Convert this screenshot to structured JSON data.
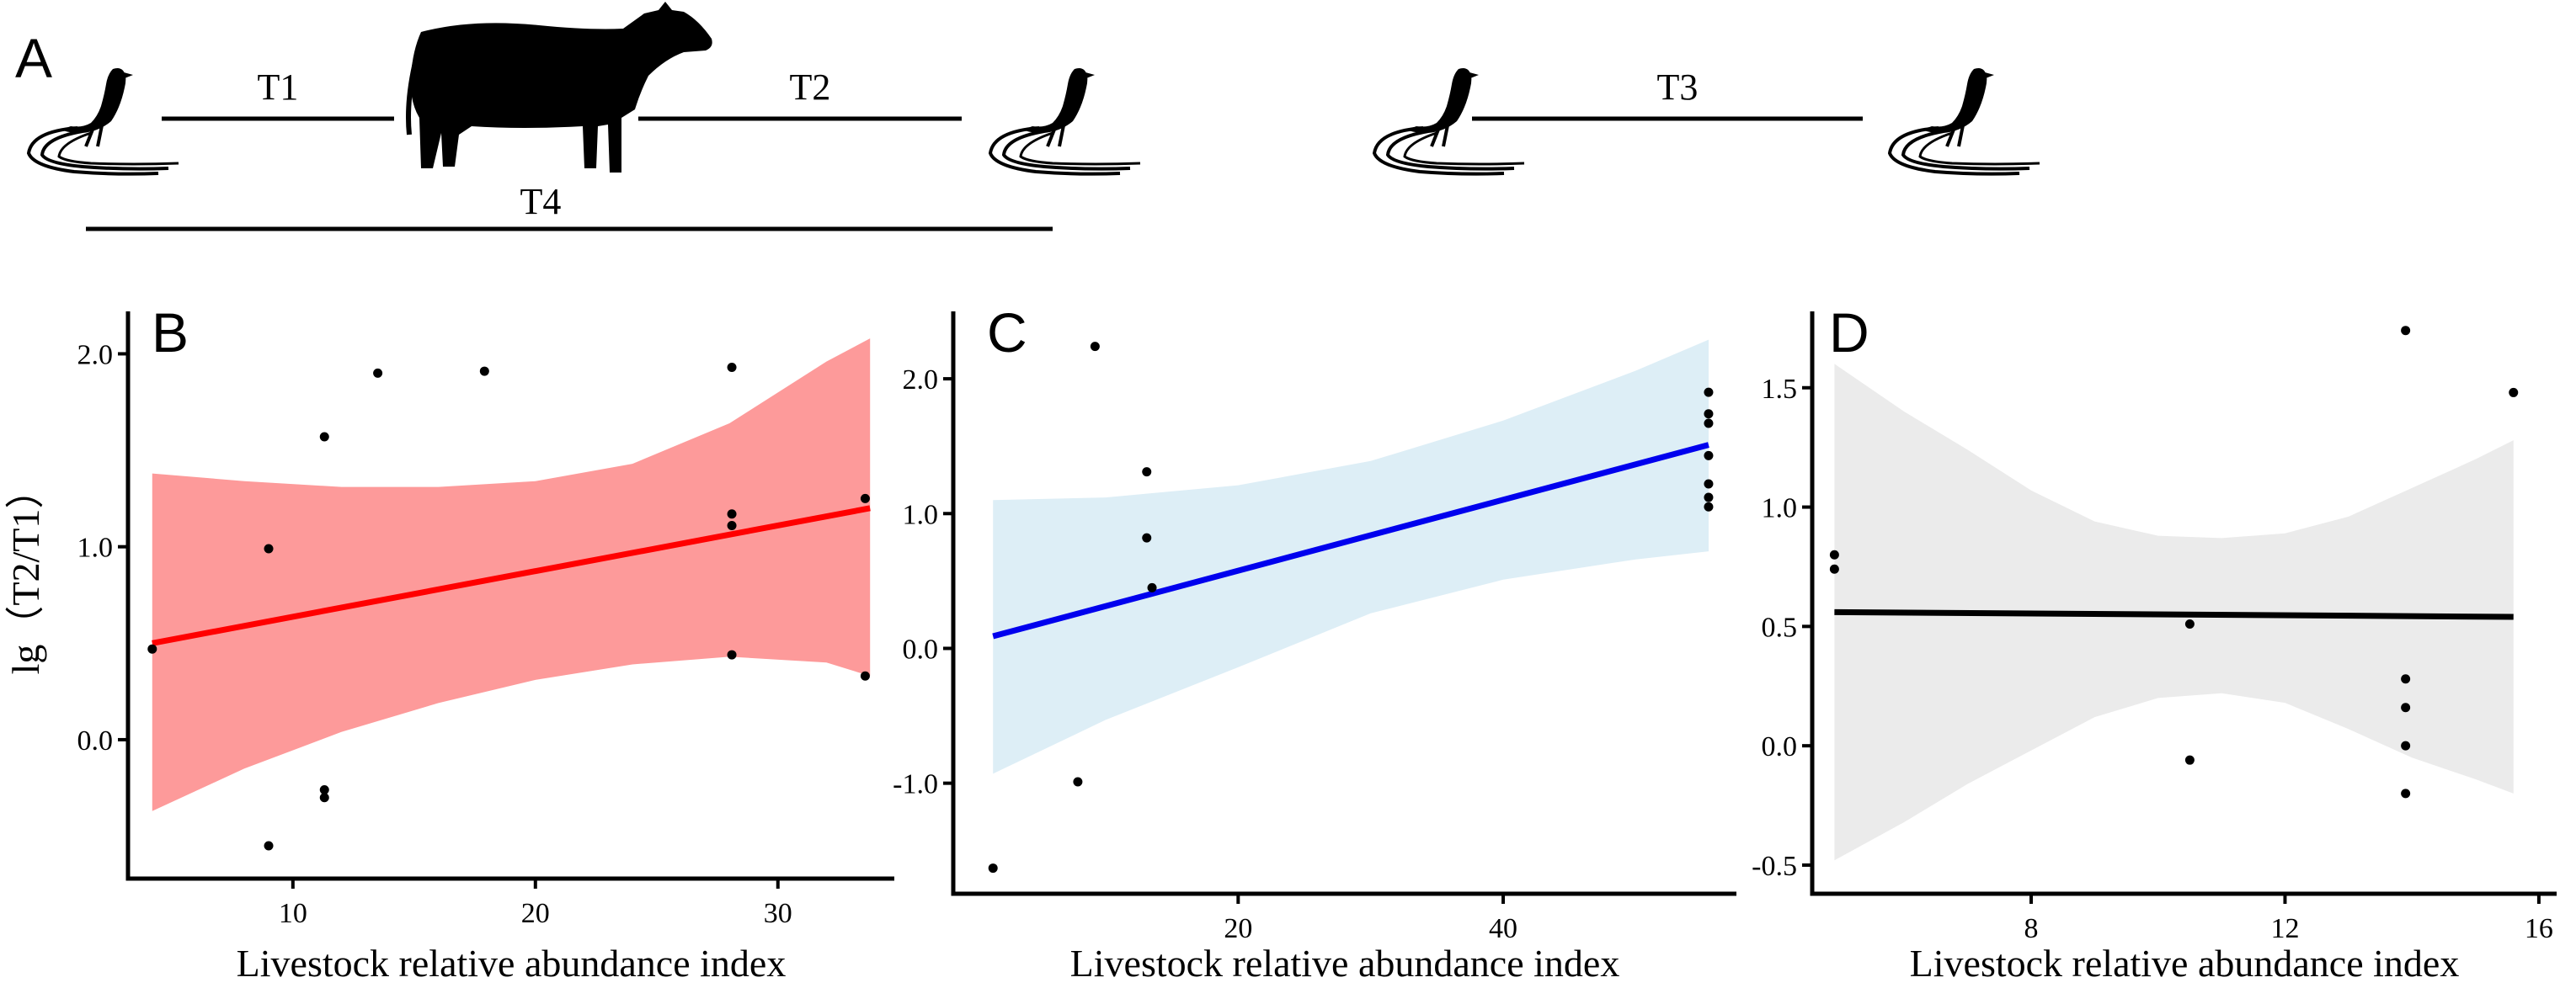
{
  "panel_a": {
    "letter": "A",
    "segments": [
      {
        "label": "T1"
      },
      {
        "label": "T2"
      },
      {
        "label": "T3"
      },
      {
        "label": "T4"
      }
    ],
    "icons": [
      "pheasant-icon",
      "cow-icon"
    ]
  },
  "ylabel_shared": "lg（T2/T1）",
  "chart_data": [
    {
      "type": "scatter",
      "panel": "B",
      "title": "",
      "xlabel": "Livestock relative abundance index",
      "ylabel": "lg（T2/T1）",
      "xlim": [
        3.2,
        34.8
      ],
      "ylim": [
        -0.72,
        2.22
      ],
      "xticks": [
        10,
        20,
        30
      ],
      "yticks": [
        0.0,
        1.0,
        2.0
      ],
      "xtick_labels": [
        "10",
        "20",
        "30"
      ],
      "ytick_labels": [
        "0.0",
        "1.0",
        "2.0"
      ],
      "grid": false,
      "fit": {
        "x": [
          4.2,
          33.8
        ],
        "y": [
          0.5,
          1.2
        ]
      },
      "ci": {
        "x": [
          4.2,
          8,
          12,
          16,
          20,
          24,
          28,
          32,
          33.8
        ],
        "upper": [
          1.38,
          1.34,
          1.31,
          1.31,
          1.34,
          1.43,
          1.64,
          1.96,
          2.08
        ],
        "lower": [
          -0.37,
          -0.15,
          0.04,
          0.19,
          0.31,
          0.39,
          0.43,
          0.4,
          0.33
        ]
      },
      "colors": {
        "line": "#ff0000",
        "band": "#fd9a9a",
        "points": "#000000"
      },
      "points": [
        {
          "x": 4.2,
          "y": 0.47
        },
        {
          "x": 9.0,
          "y": 0.99
        },
        {
          "x": 9.0,
          "y": -0.55
        },
        {
          "x": 11.3,
          "y": 1.57
        },
        {
          "x": 11.3,
          "y": -0.26
        },
        {
          "x": 11.3,
          "y": -0.3
        },
        {
          "x": 13.5,
          "y": 1.9
        },
        {
          "x": 17.9,
          "y": 1.91
        },
        {
          "x": 28.1,
          "y": 1.93
        },
        {
          "x": 28.1,
          "y": 1.17
        },
        {
          "x": 28.1,
          "y": 1.11
        },
        {
          "x": 28.1,
          "y": 0.44
        },
        {
          "x": 33.6,
          "y": 1.25
        },
        {
          "x": 33.6,
          "y": 0.33
        }
      ]
    },
    {
      "type": "scatter",
      "panel": "C",
      "title": "",
      "xlabel": "Livestock relative abundance index",
      "ylabel": "",
      "xlim": [
        -1.5,
        57.6
      ],
      "ylim": [
        -1.82,
        2.5
      ],
      "xticks": [
        20,
        40
      ],
      "yticks": [
        -1.0,
        0.0,
        1.0,
        2.0
      ],
      "xtick_labels": [
        "20",
        "40"
      ],
      "ytick_labels": [
        "-1.0",
        "0.0",
        "1.0",
        "2.0"
      ],
      "grid": false,
      "fit": {
        "x": [
          1.5,
          55.5
        ],
        "y": [
          0.09,
          1.51
        ]
      },
      "ci": {
        "x": [
          1.5,
          10,
          20,
          30,
          40,
          50,
          55.5
        ],
        "upper": [
          1.1,
          1.12,
          1.21,
          1.39,
          1.69,
          2.06,
          2.29
        ],
        "lower": [
          -0.93,
          -0.53,
          -0.14,
          0.26,
          0.51,
          0.66,
          0.72
        ]
      },
      "colors": {
        "line": "#0000ee",
        "band": "#ddeef6",
        "points": "#000000"
      },
      "points": [
        {
          "x": 1.5,
          "y": -1.63
        },
        {
          "x": 7.9,
          "y": -0.99
        },
        {
          "x": 9.2,
          "y": 2.24
        },
        {
          "x": 13.1,
          "y": 1.31
        },
        {
          "x": 13.1,
          "y": 0.82
        },
        {
          "x": 13.5,
          "y": 0.45
        },
        {
          "x": 55.5,
          "y": 1.9
        },
        {
          "x": 55.5,
          "y": 1.74
        },
        {
          "x": 55.5,
          "y": 1.67
        },
        {
          "x": 55.5,
          "y": 1.43
        },
        {
          "x": 55.5,
          "y": 1.22
        },
        {
          "x": 55.5,
          "y": 1.12
        },
        {
          "x": 55.5,
          "y": 1.05
        }
      ]
    },
    {
      "type": "scatter",
      "panel": "D",
      "title": "",
      "xlabel": "Livestock relative abundance index",
      "ylabel": "",
      "xlim": [
        4.55,
        16.28
      ],
      "ylim": [
        -0.62,
        1.82
      ],
      "xticks": [
        8,
        12,
        16
      ],
      "yticks": [
        -0.5,
        0.0,
        0.5,
        1.0,
        1.5
      ],
      "xtick_labels": [
        "8",
        "12",
        "16"
      ],
      "ytick_labels": [
        "-0.5",
        "0.0",
        "0.5",
        "1.0",
        "1.5"
      ],
      "grid": false,
      "fit": {
        "x": [
          4.9,
          15.6
        ],
        "y": [
          0.56,
          0.54
        ]
      },
      "ci": {
        "x": [
          4.9,
          6,
          7,
          8,
          9,
          10,
          11,
          12,
          13,
          14,
          15,
          15.6
        ],
        "upper": [
          1.6,
          1.4,
          1.24,
          1.07,
          0.94,
          0.88,
          0.87,
          0.89,
          0.96,
          1.08,
          1.2,
          1.28
        ],
        "lower": [
          -0.48,
          -0.32,
          -0.16,
          -0.02,
          0.12,
          0.2,
          0.22,
          0.18,
          0.07,
          -0.05,
          -0.14,
          -0.2
        ]
      },
      "colors": {
        "line": "#000000",
        "band": "#ebebeb",
        "points": "#000000"
      },
      "points": [
        {
          "x": 4.9,
          "y": 0.8
        },
        {
          "x": 4.9,
          "y": 0.74
        },
        {
          "x": 10.5,
          "y": 0.51
        },
        {
          "x": 10.5,
          "y": -0.06
        },
        {
          "x": 13.9,
          "y": 1.74
        },
        {
          "x": 13.9,
          "y": 0.28
        },
        {
          "x": 13.9,
          "y": 0.16
        },
        {
          "x": 13.9,
          "y": 0.0
        },
        {
          "x": 13.9,
          "y": -0.2
        },
        {
          "x": 15.6,
          "y": 1.48
        }
      ]
    }
  ]
}
